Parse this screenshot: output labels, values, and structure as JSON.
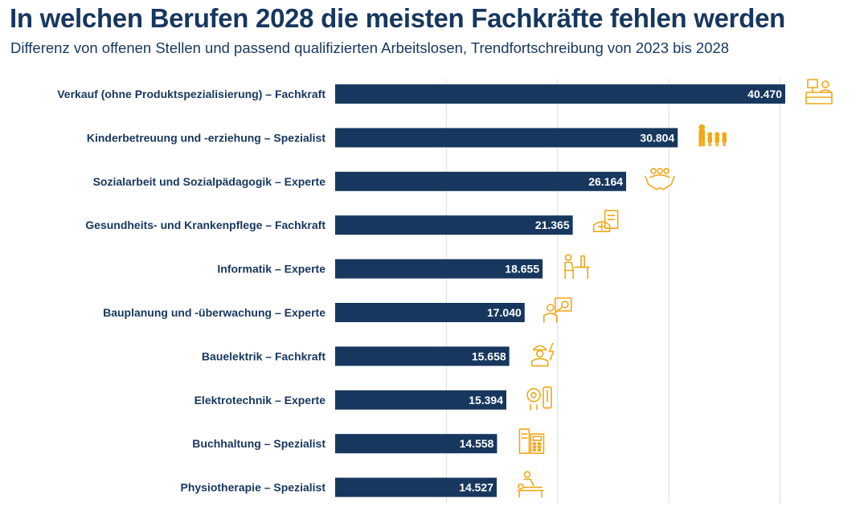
{
  "chart_data": {
    "type": "bar",
    "orientation": "horizontal",
    "title": "In welchen Berufen 2028 die meisten Fachkräfte fehlen werden",
    "subtitle": "Differenz von offenen Stellen und passend qualifizierten Arbeitslosen, Trendfortschreibung von 2023 bis 2028",
    "xlim": [
      0,
      40470
    ],
    "grid": true,
    "categories": [
      "Verkauf (ohne Produktspezialisierung) – Fachkraft",
      "Kinderbetreuung und -erziehung – Spezialist",
      "Sozialarbeit und Sozialpädagogik – Experte",
      "Gesundheits- und Krankenpflege – Fachkraft",
      "Informatik – Experte",
      "Bauplanung und -überwachung – Experte",
      "Bauelektrik – Fachkraft",
      "Elektrotechnik – Experte",
      "Buchhaltung – Spezialist",
      "Physiotherapie – Spezialist"
    ],
    "values": [
      40470,
      30804,
      26164,
      21365,
      18655,
      17040,
      15658,
      15394,
      14558,
      14527
    ],
    "value_labels": [
      "40.470",
      "30.804",
      "26.164",
      "21.365",
      "18.655",
      "17.040",
      "15.658",
      "15.394",
      "14.558",
      "14.527"
    ],
    "icons": [
      "cashier-icon",
      "family-icon",
      "helping-hands-icon",
      "nurse-cap-icon",
      "computer-desk-icon",
      "architect-icon",
      "electrician-icon",
      "electronics-icon",
      "calculator-icon",
      "physiotherapy-icon"
    ]
  },
  "colors": {
    "bar": "#17375e",
    "text": "#17375e",
    "icon": "#f0a818",
    "grid": "#dedede",
    "value_text": "#ffffff"
  }
}
